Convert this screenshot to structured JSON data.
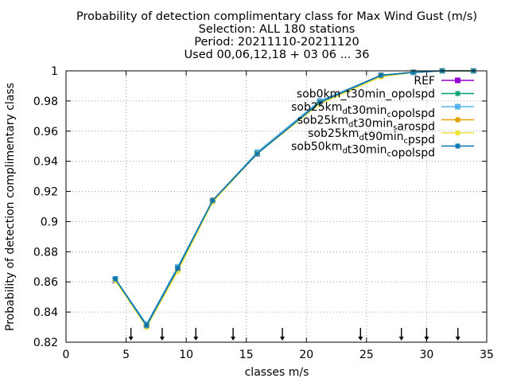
{
  "title_lines": [
    "Probability of detection complimentary class  for Max Wind Gust (m/s)",
    "Selection: ALL    180 stations",
    "Period: 20211110-20211120",
    "Used 00,06,12,18 + 03 06 ... 36"
  ],
  "chart_data": {
    "type": "line",
    "xlabel": "classes m/s",
    "ylabel": "Probability of detection complimentary class",
    "xlim": [
      0,
      35
    ],
    "ylim": [
      0.82,
      1.0
    ],
    "xticks": [
      "0",
      "5",
      "10",
      "15",
      "20",
      "25",
      "30",
      "35"
    ],
    "yticks": [
      "0.82",
      "0.84",
      "0.86",
      "0.88",
      "0.9",
      "0.92",
      "0.94",
      "0.96",
      "0.98",
      "1"
    ],
    "grid": true,
    "legend_position": "top-right",
    "class_markers_x": [
      5.4,
      8.0,
      10.8,
      13.9,
      18.0,
      24.5,
      27.9,
      30.0,
      32.6
    ],
    "x": [
      4.1,
      6.7,
      9.3,
      12.2,
      15.9,
      21.1,
      26.2,
      28.9,
      31.3,
      33.9
    ],
    "series": [
      {
        "name": "REF",
        "color": "#9400d3",
        "marker": "square",
        "values": [
          0.861,
          0.831,
          0.869,
          0.914,
          0.945,
          0.979,
          0.997,
          0.999,
          1.0,
          1.0
        ]
      },
      {
        "name": "sob0km_t30min_opolspd",
        "color": "#009e73",
        "marker": "star",
        "values": [
          0.861,
          0.831,
          0.869,
          0.914,
          0.945,
          0.979,
          0.997,
          0.999,
          1.0,
          1.0
        ]
      },
      {
        "name": "sob25km_d t30min_c opolspd",
        "color": "#56b4e9",
        "marker": "square",
        "values": [
          0.862,
          0.832,
          0.87,
          0.914,
          0.946,
          0.98,
          0.997,
          0.999,
          1.0,
          1.0
        ]
      },
      {
        "name": "sob25km_d t30min_s arospd",
        "color": "#e69f00",
        "marker": "circle",
        "values": [
          0.861,
          0.831,
          0.868,
          0.914,
          0.945,
          0.979,
          0.997,
          0.999,
          1.0,
          1.0
        ]
      },
      {
        "name": "sob25km_d t90min_c pspd",
        "color": "#f0e442",
        "marker": "circle",
        "values": [
          0.861,
          0.83,
          0.867,
          0.913,
          0.945,
          0.978,
          0.996,
          0.999,
          1.0,
          1.0
        ]
      },
      {
        "name": "sob50km_d t30min_c opolspd",
        "color": "#0072b2",
        "marker": "star",
        "values": [
          0.862,
          0.831,
          0.869,
          0.914,
          0.945,
          0.979,
          0.997,
          0.999,
          1.0,
          1.0
        ]
      }
    ]
  }
}
